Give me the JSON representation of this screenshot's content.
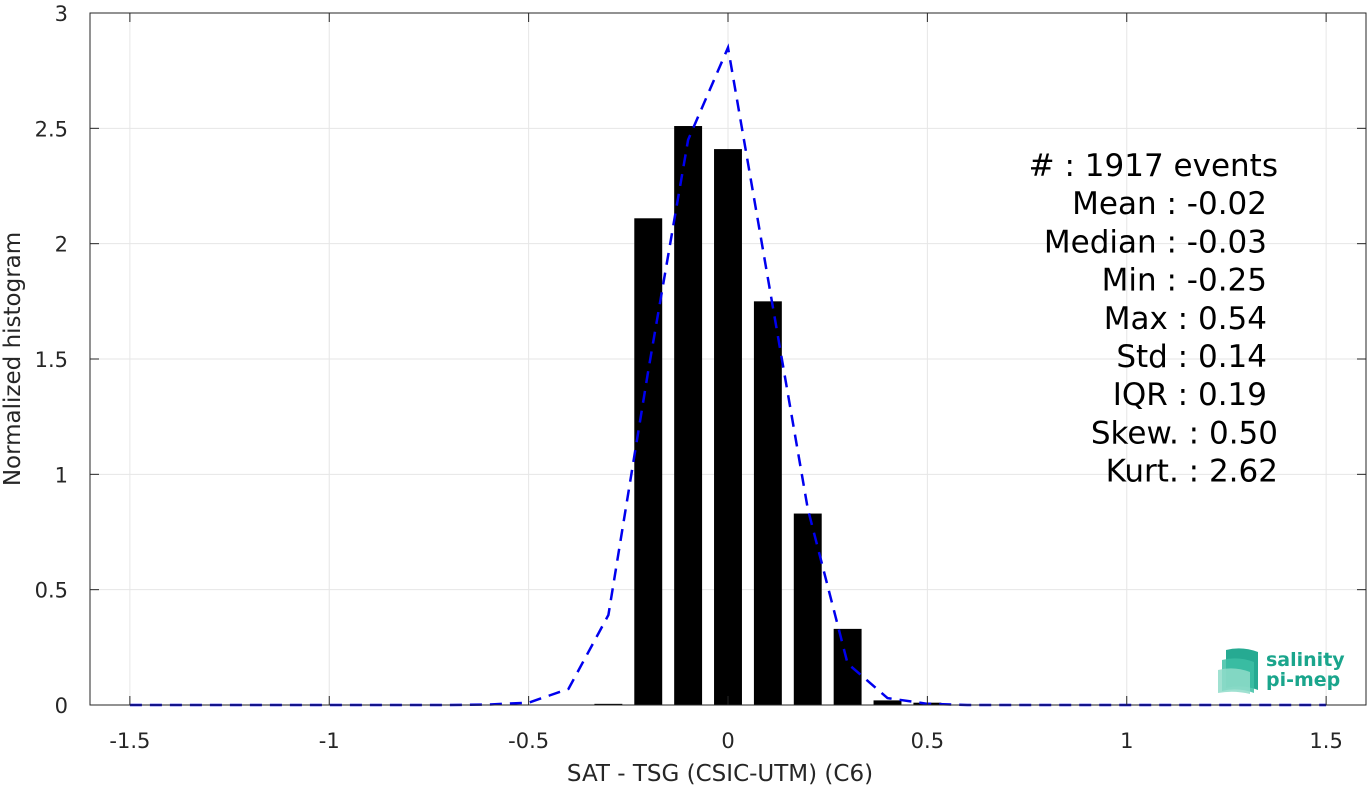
{
  "chart_data": {
    "type": "bar",
    "xlabel": "SAT - TSG (CSIC-UTM) (C6)",
    "ylabel": "Normalized histogram",
    "xlim": [
      -1.6,
      1.6
    ],
    "ylim": [
      0,
      3
    ],
    "xticks": [
      -1.5,
      -1,
      -0.5,
      0,
      0.5,
      1,
      1.5
    ],
    "xtick_labels": [
      "-1.5",
      "-1",
      "-0.5",
      "0",
      "0.5",
      "1",
      "1.5"
    ],
    "yticks": [
      0,
      0.5,
      1,
      1.5,
      2,
      2.5,
      3
    ],
    "ytick_labels": [
      "0",
      "0.5",
      "1",
      "1.5",
      "2",
      "2.5",
      "3"
    ],
    "grid": true,
    "bar_width": 0.07,
    "colors": {
      "bars": "#000000",
      "fit": "#0000ee",
      "grid": "#e6e6e6",
      "axis": "#262626"
    },
    "bars": {
      "x": [
        -0.3,
        -0.2,
        -0.1,
        0.0,
        0.1,
        0.2,
        0.3,
        0.4,
        0.5
      ],
      "values": [
        0.005,
        2.11,
        2.51,
        2.41,
        1.75,
        0.83,
        0.33,
        0.02,
        0.01
      ]
    },
    "fit_curve": {
      "style": "dashed",
      "x": [
        -1.5,
        -1.4,
        -1.3,
        -1.2,
        -1.1,
        -1.0,
        -0.9,
        -0.8,
        -0.7,
        -0.6,
        -0.5,
        -0.4,
        -0.3,
        -0.2,
        -0.1,
        0.0,
        0.1,
        0.2,
        0.3,
        0.4,
        0.5,
        0.6,
        0.7,
        0.8,
        0.9,
        1.0,
        1.1,
        1.2,
        1.3,
        1.4,
        1.5
      ],
      "y": [
        0,
        0,
        0,
        0,
        0,
        0,
        0,
        0,
        0,
        0.002,
        0.01,
        0.07,
        0.39,
        1.45,
        2.45,
        2.85,
        1.85,
        0.85,
        0.18,
        0.03,
        0.005,
        0,
        0,
        0,
        0,
        0,
        0,
        0,
        0,
        0,
        0
      ]
    },
    "stats": [
      {
        "label": "#  ",
        "value": "1917 events"
      },
      {
        "label": "Mean ",
        "value": "-0.02"
      },
      {
        "label": "Median ",
        "value": "-0.03"
      },
      {
        "label": "Min ",
        "value": "-0.25"
      },
      {
        "label": "Max ",
        "value": "0.54"
      },
      {
        "label": "Std ",
        "value": "0.14"
      },
      {
        "label": "IQR ",
        "value": "0.19"
      },
      {
        "label": "Skew. ",
        "value": "0.50"
      },
      {
        "label": "Kurt. ",
        "value": "2.62"
      }
    ]
  },
  "logo": {
    "line1": "salinity",
    "line2": "pi-mep",
    "icon": "salinity-wave-icon"
  }
}
